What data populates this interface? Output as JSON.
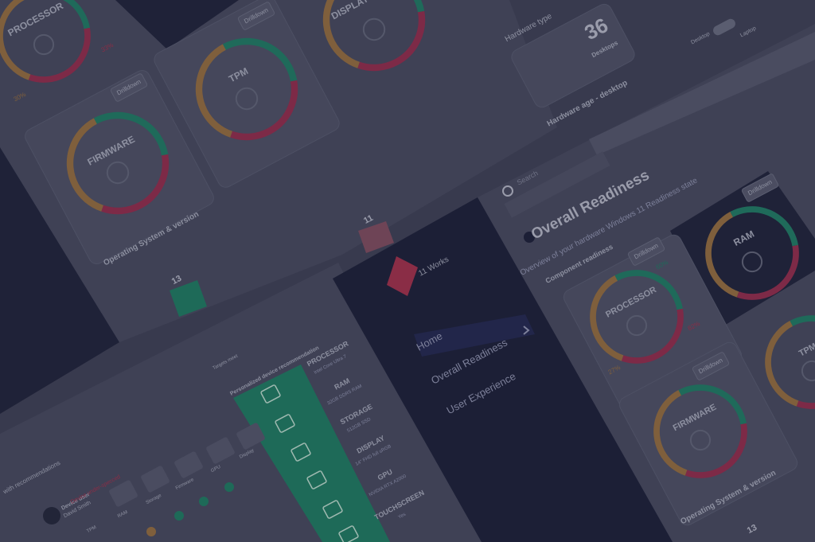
{
  "left_dashboard": {
    "processor": "PROCESSOR",
    "processor_pct_red": "33%",
    "processor_pct_orange": "30%",
    "display": "DISPLAY",
    "tpm": "TPM",
    "firmware": "FIRMWARE",
    "drilldown": "Drilldown",
    "os_section": "Operating System & version",
    "bar_a": 13,
    "bar_b": 11,
    "hardware_type": "Hardware type",
    "desktop_count": 36,
    "desktop_count_label": "Desktops",
    "hardware_age": "Hardware age - desktop",
    "toggle_left": "Desktop",
    "toggle_right": "Laptop"
  },
  "sidebar": {
    "brand": "11 Works",
    "nav": [
      "Home",
      "Overall Readiness",
      "User Experience"
    ],
    "search": "Search"
  },
  "readiness": {
    "title": "Overall Readiness",
    "subtitle": "Overview of your hardware Windows 11 Readiness state",
    "section": "Component readiness",
    "ram": "RAM",
    "processor": "PROCESSOR",
    "pct_green": "60%",
    "pct_red": "82%",
    "pct_orange": "27%",
    "firmware": "FIRMWARE",
    "tpm": "TPM",
    "drilldown": "Drilldown",
    "os_section": "Operating System & version",
    "bar_a": 13
  },
  "recommendation": {
    "title": "Personalized device recommendation",
    "legend": "Targets meet",
    "items": [
      {
        "name": "PROCESSOR",
        "detail": "Intel Core Ultra 7"
      },
      {
        "name": "RAM",
        "detail": "32GB DDR5 RAM"
      },
      {
        "name": "STORAGE",
        "detail": "512GB SSD"
      },
      {
        "name": "DISPLAY",
        "detail": "14\" FHD full sRGB"
      },
      {
        "name": "GPU",
        "detail": "NVIDIA RTX A2000"
      },
      {
        "name": "TOUCHSCREEN",
        "detail": "Yes"
      }
    ]
  },
  "devices": {
    "heading": "with recommendations",
    "user_label": "Device user",
    "user_name": "David Smith",
    "status": "Device under-specced",
    "components": [
      "TPM",
      "RAM",
      "Storage",
      "Firmware",
      "GPU",
      "Display"
    ]
  }
}
